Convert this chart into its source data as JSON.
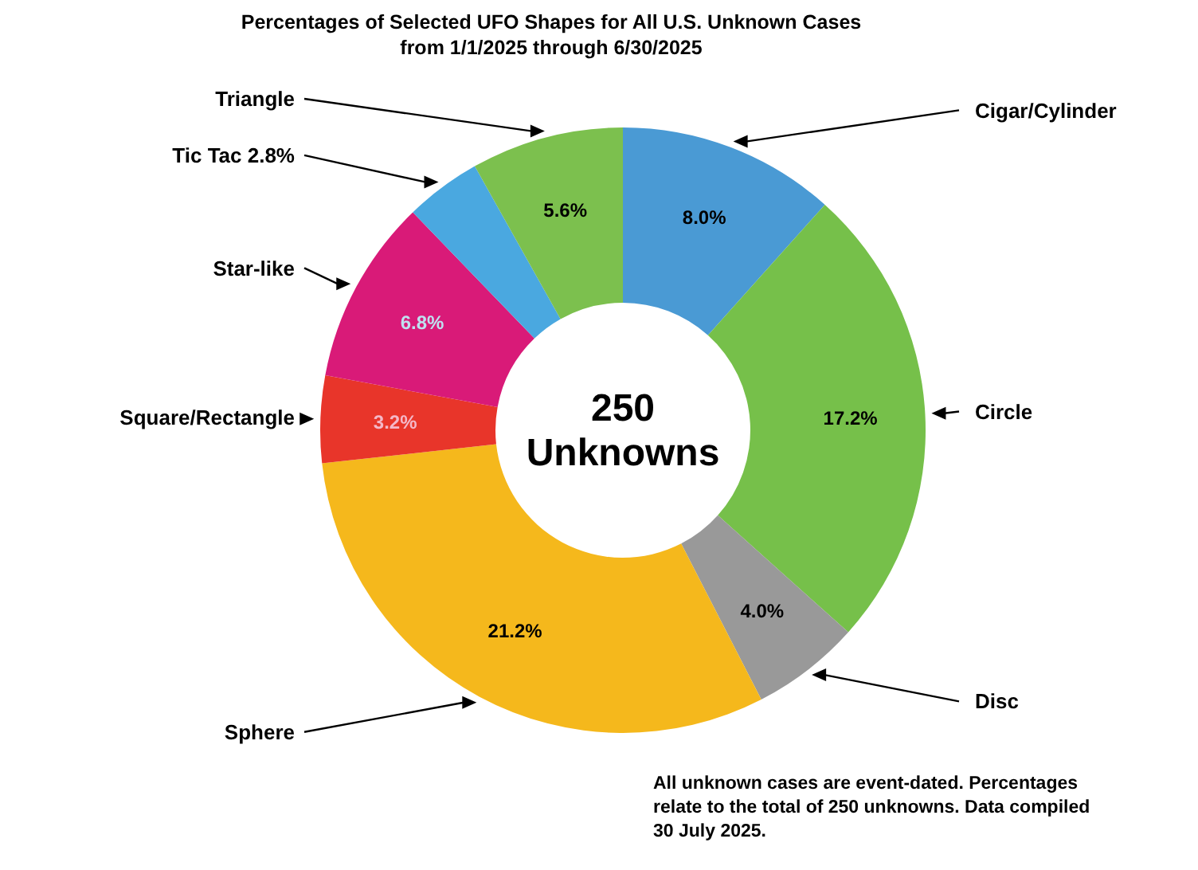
{
  "chart_data": {
    "type": "donut",
    "title": "Percentages of Selected UFO Shapes for All U.S. Unknown Cases from 1/1/2025 through 6/30/2025",
    "categories": [
      "Cigar/Cylinder",
      "Circle",
      "Disc",
      "Sphere",
      "Square/Rectangle",
      "Star-like",
      "Tic Tac 2.8%",
      "Triangle"
    ],
    "values": [
      8.0,
      17.2,
      4.0,
      21.2,
      3.2,
      6.8,
      2.8,
      5.6
    ],
    "colors": [
      "#4a9ad4",
      "#76c04a",
      "#999999",
      "#f5b81c",
      "#e8352a",
      "#d91a78",
      "#4aa8e0",
      "#7cc04e"
    ],
    "value_labels": [
      "8.0%",
      "17.2%",
      "4.0%",
      "21.2%",
      "3.2%",
      "6.8%",
      null,
      "5.6%"
    ],
    "annotations": [
      "250 Unknowns",
      "All unknown cases are event-dated. Percentages relate to the total of 250 unknowns. Data compiled 30 July 2025."
    ]
  }
}
